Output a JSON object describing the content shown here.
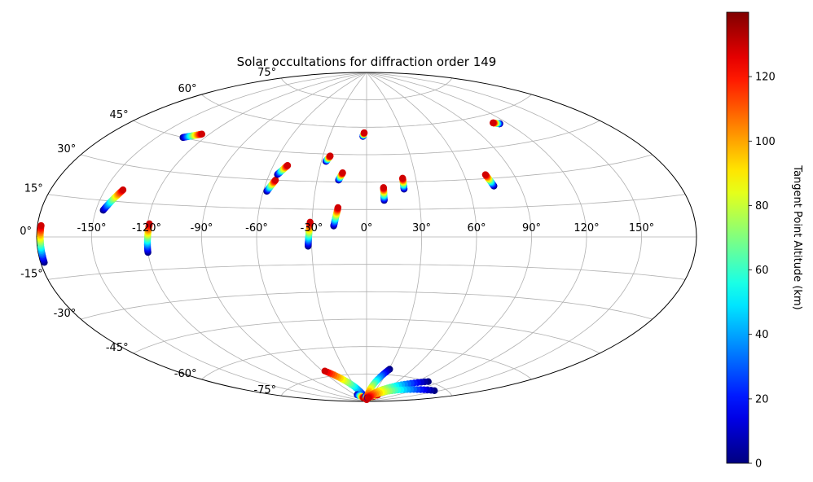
{
  "chart_data": {
    "type": "scatter",
    "projection": "aitoff",
    "title": "Solar occultations for diffraction order 149",
    "xlabel": "",
    "ylabel": "",
    "lon_tick_labels": [
      "-150°",
      "-120°",
      "-90°",
      "-60°",
      "-30°",
      "0°",
      "30°",
      "60°",
      "90°",
      "120°",
      "150°"
    ],
    "lon_tick_values": [
      -150,
      -120,
      -90,
      -60,
      -30,
      0,
      30,
      60,
      90,
      120,
      150
    ],
    "lat_tick_labels": [
      "-75°",
      "-60°",
      "-45°",
      "-30°",
      "-15°",
      "0°",
      "15°",
      "30°",
      "45°",
      "60°",
      "75°"
    ],
    "lat_tick_values": [
      -75,
      -60,
      -45,
      -30,
      -15,
      0,
      15,
      30,
      45,
      60,
      75
    ],
    "grid": true,
    "legend": "none",
    "colorbar": {
      "label": "Tangent Point Altitude (km)",
      "tick_labels": [
        "0",
        "20",
        "40",
        "60",
        "80",
        "100",
        "120"
      ],
      "tick_values": [
        0,
        20,
        40,
        60,
        80,
        100,
        120
      ],
      "range": [
        0,
        140
      ],
      "colormap": "jet"
    },
    "tracks": [
      {
        "start": [
          -178,
          -9
        ],
        "end": [
          -178,
          4
        ]
      },
      {
        "start": [
          -120,
          -7
        ],
        "end": [
          -119,
          6
        ]
      },
      {
        "start": [
          -146,
          11
        ],
        "end": [
          -140,
          20
        ]
      },
      {
        "start": [
          -134,
          45
        ],
        "end": [
          -125,
          48
        ]
      },
      {
        "start": [
          -58,
          24
        ],
        "end": [
          -55,
          30
        ]
      },
      {
        "start": [
          -55,
          33
        ],
        "end": [
          -51,
          38
        ]
      },
      {
        "start": [
          -32,
          -5
        ],
        "end": [
          -31,
          8
        ]
      },
      {
        "start": [
          -27,
          41
        ],
        "end": [
          -25,
          44
        ]
      },
      {
        "start": [
          -18,
          6
        ],
        "end": [
          -16,
          16
        ]
      },
      {
        "start": [
          -17,
          31
        ],
        "end": [
          -15,
          35
        ]
      },
      {
        "start": [
          -3,
          55
        ],
        "end": [
          -2,
          57
        ]
      },
      {
        "start": [
          10,
          20
        ],
        "end": [
          10,
          27
        ]
      },
      {
        "start": [
          22,
          26
        ],
        "end": [
          22,
          32
        ]
      },
      {
        "start": [
          75,
          26
        ],
        "end": [
          73,
          32
        ]
      },
      {
        "start": [
          114,
          55
        ],
        "end": [
          110,
          56
        ]
      },
      {
        "start": [
          -16,
          -88
        ],
        "end": [
          -57,
          -72
        ]
      },
      {
        "start": [
          -50,
          -86
        ],
        "end": [
          -30,
          -88
        ]
      },
      {
        "start": [
          -6,
          -87
        ],
        "end": [
          2,
          -89
        ]
      },
      {
        "start": [
          31,
          -72
        ],
        "end": [
          2,
          -89
        ]
      },
      {
        "start": [
          10,
          -88
        ],
        "end": [
          50,
          -87
        ]
      },
      {
        "start": [
          30,
          -87
        ],
        "end": [
          60,
          -86
        ]
      },
      {
        "start": [
          105,
          -75
        ],
        "end": [
          15,
          -88
        ]
      },
      {
        "start": [
          145,
          -77
        ],
        "end": [
          20,
          -88
        ]
      }
    ]
  }
}
